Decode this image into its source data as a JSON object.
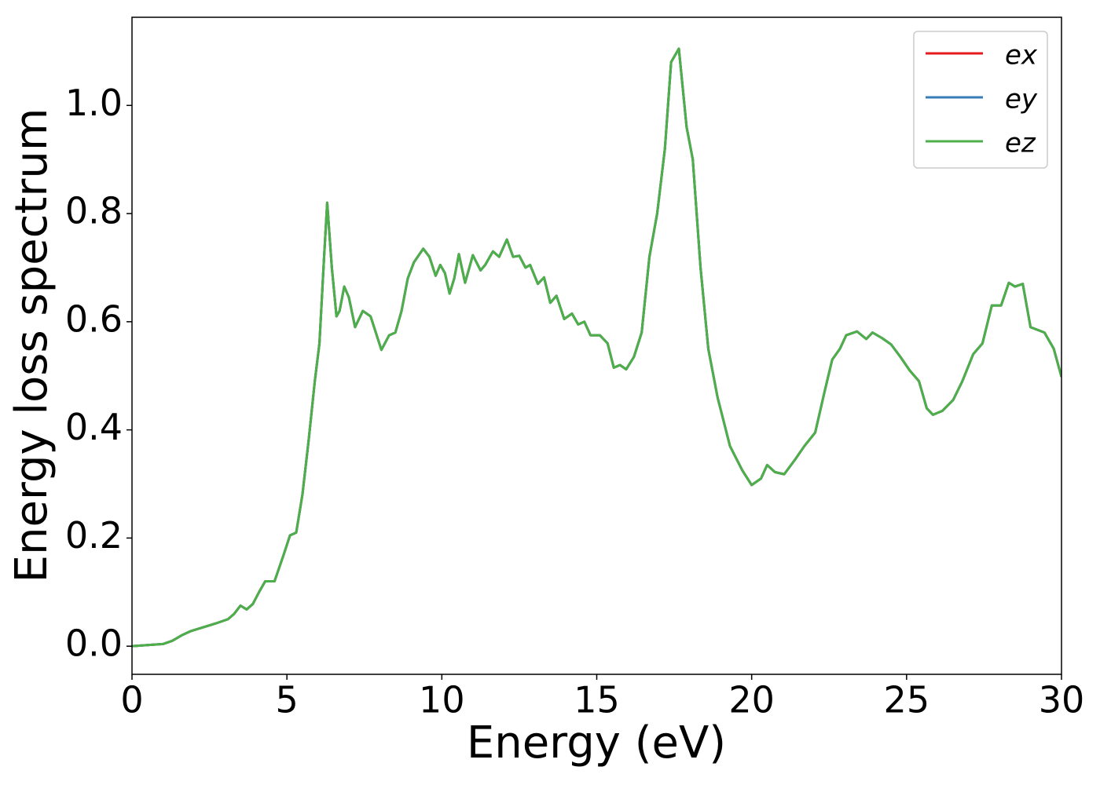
{
  "chart_data": {
    "type": "line",
    "xlabel": "Energy (eV)",
    "ylabel": "Energy loss spectrum",
    "x": [
      0,
      0.5,
      1.0,
      1.3,
      1.6,
      1.9,
      2.3,
      2.7,
      3.1,
      3.3,
      3.5,
      3.7,
      3.9,
      4.1,
      4.3,
      4.6,
      4.9,
      5.1,
      5.3,
      5.5,
      5.7,
      5.9,
      6.05,
      6.2,
      6.3,
      6.45,
      6.6,
      6.7,
      6.85,
      7.0,
      7.2,
      7.45,
      7.7,
      8.05,
      8.3,
      8.5,
      8.7,
      8.9,
      9.1,
      9.4,
      9.6,
      9.8,
      9.95,
      10.1,
      10.25,
      10.4,
      10.55,
      10.75,
      11.0,
      11.25,
      11.4,
      11.65,
      11.85,
      12.1,
      12.3,
      12.5,
      12.7,
      12.85,
      13.1,
      13.3,
      13.5,
      13.7,
      13.95,
      14.2,
      14.4,
      14.6,
      14.8,
      15.1,
      15.35,
      15.55,
      15.75,
      15.95,
      16.2,
      16.45,
      16.7,
      16.95,
      17.2,
      17.4,
      17.65,
      17.9,
      18.1,
      18.35,
      18.6,
      18.9,
      19.3,
      19.7,
      20.0,
      20.3,
      20.5,
      20.75,
      21.05,
      21.4,
      21.7,
      22.05,
      22.35,
      22.6,
      22.85,
      23.05,
      23.4,
      23.7,
      23.9,
      24.2,
      24.5,
      24.8,
      25.1,
      25.4,
      25.65,
      25.85,
      26.15,
      26.5,
      26.8,
      27.15,
      27.45,
      27.75,
      28.05,
      28.3,
      28.5,
      28.75,
      29.0,
      29.45,
      29.75,
      30.0
    ],
    "series": [
      {
        "name": "ex",
        "color": "#e41a1c",
        "values": [
          0,
          0.002,
          0.004,
          0.01,
          0.02,
          0.028,
          0.035,
          0.042,
          0.05,
          0.06,
          0.075,
          0.068,
          0.078,
          0.1,
          0.12,
          0.12,
          0.17,
          0.205,
          0.21,
          0.28,
          0.38,
          0.49,
          0.56,
          0.72,
          0.82,
          0.7,
          0.61,
          0.62,
          0.665,
          0.645,
          0.59,
          0.62,
          0.61,
          0.548,
          0.575,
          0.58,
          0.62,
          0.68,
          0.71,
          0.735,
          0.72,
          0.685,
          0.705,
          0.69,
          0.652,
          0.68,
          0.725,
          0.672,
          0.723,
          0.695,
          0.705,
          0.73,
          0.72,
          0.752,
          0.72,
          0.722,
          0.7,
          0.705,
          0.67,
          0.682,
          0.635,
          0.648,
          0.605,
          0.615,
          0.595,
          0.6,
          0.575,
          0.575,
          0.56,
          0.515,
          0.52,
          0.512,
          0.535,
          0.58,
          0.72,
          0.8,
          0.92,
          1.08,
          1.105,
          0.96,
          0.9,
          0.7,
          0.55,
          0.46,
          0.37,
          0.325,
          0.298,
          0.31,
          0.335,
          0.322,
          0.318,
          0.345,
          0.37,
          0.395,
          0.47,
          0.53,
          0.55,
          0.575,
          0.582,
          0.568,
          0.58,
          0.57,
          0.558,
          0.535,
          0.51,
          0.49,
          0.44,
          0.428,
          0.435,
          0.455,
          0.49,
          0.54,
          0.56,
          0.63,
          0.63,
          0.672,
          0.665,
          0.67,
          0.59,
          0.58,
          0.55,
          0.498
        ]
      },
      {
        "name": "ey",
        "color": "#377eb8",
        "values": [
          0,
          0.002,
          0.004,
          0.01,
          0.02,
          0.028,
          0.035,
          0.042,
          0.05,
          0.06,
          0.075,
          0.068,
          0.078,
          0.1,
          0.12,
          0.12,
          0.17,
          0.205,
          0.21,
          0.28,
          0.38,
          0.49,
          0.56,
          0.72,
          0.82,
          0.7,
          0.61,
          0.62,
          0.665,
          0.645,
          0.59,
          0.62,
          0.61,
          0.548,
          0.575,
          0.58,
          0.62,
          0.68,
          0.71,
          0.735,
          0.72,
          0.685,
          0.705,
          0.69,
          0.652,
          0.68,
          0.725,
          0.672,
          0.723,
          0.695,
          0.705,
          0.73,
          0.72,
          0.752,
          0.72,
          0.722,
          0.7,
          0.705,
          0.67,
          0.682,
          0.635,
          0.648,
          0.605,
          0.615,
          0.595,
          0.6,
          0.575,
          0.575,
          0.56,
          0.515,
          0.52,
          0.512,
          0.535,
          0.58,
          0.72,
          0.8,
          0.92,
          1.08,
          1.105,
          0.96,
          0.9,
          0.7,
          0.55,
          0.46,
          0.37,
          0.325,
          0.298,
          0.31,
          0.335,
          0.322,
          0.318,
          0.345,
          0.37,
          0.395,
          0.47,
          0.53,
          0.55,
          0.575,
          0.582,
          0.568,
          0.58,
          0.57,
          0.558,
          0.535,
          0.51,
          0.49,
          0.44,
          0.428,
          0.435,
          0.455,
          0.49,
          0.54,
          0.56,
          0.63,
          0.63,
          0.672,
          0.665,
          0.67,
          0.59,
          0.58,
          0.55,
          0.498
        ]
      },
      {
        "name": "ez",
        "color": "#4daf4a",
        "values": [
          0,
          0.002,
          0.004,
          0.01,
          0.02,
          0.028,
          0.035,
          0.042,
          0.05,
          0.06,
          0.075,
          0.068,
          0.078,
          0.1,
          0.12,
          0.12,
          0.17,
          0.205,
          0.21,
          0.28,
          0.38,
          0.49,
          0.56,
          0.72,
          0.82,
          0.7,
          0.61,
          0.62,
          0.665,
          0.645,
          0.59,
          0.62,
          0.61,
          0.548,
          0.575,
          0.58,
          0.62,
          0.68,
          0.71,
          0.735,
          0.72,
          0.685,
          0.705,
          0.69,
          0.652,
          0.68,
          0.725,
          0.672,
          0.723,
          0.695,
          0.705,
          0.73,
          0.72,
          0.752,
          0.72,
          0.722,
          0.7,
          0.705,
          0.67,
          0.682,
          0.635,
          0.648,
          0.605,
          0.615,
          0.595,
          0.6,
          0.575,
          0.575,
          0.56,
          0.515,
          0.52,
          0.512,
          0.535,
          0.58,
          0.72,
          0.8,
          0.92,
          1.08,
          1.105,
          0.96,
          0.9,
          0.7,
          0.55,
          0.46,
          0.37,
          0.325,
          0.298,
          0.31,
          0.335,
          0.322,
          0.318,
          0.345,
          0.37,
          0.395,
          0.47,
          0.53,
          0.55,
          0.575,
          0.582,
          0.568,
          0.58,
          0.57,
          0.558,
          0.535,
          0.51,
          0.49,
          0.44,
          0.428,
          0.435,
          0.455,
          0.49,
          0.54,
          0.56,
          0.63,
          0.63,
          0.672,
          0.665,
          0.67,
          0.59,
          0.58,
          0.55,
          0.498
        ]
      }
    ],
    "xlim": [
      0,
      30
    ],
    "xticks": [
      0,
      5,
      10,
      15,
      20,
      25,
      30
    ],
    "ylim": [
      -0.052,
      1.163
    ],
    "yticks": [
      {
        "value": 0,
        "label": "0.0"
      },
      {
        "value": 0.2,
        "label": "0.2"
      },
      {
        "value": 0.4,
        "label": "0.4"
      },
      {
        "value": 0.6,
        "label": "0.6"
      },
      {
        "value": 0.8,
        "label": "0.8"
      },
      {
        "value": 1.0,
        "label": "1.0"
      }
    ],
    "legend": "upper right",
    "grid": false
  }
}
